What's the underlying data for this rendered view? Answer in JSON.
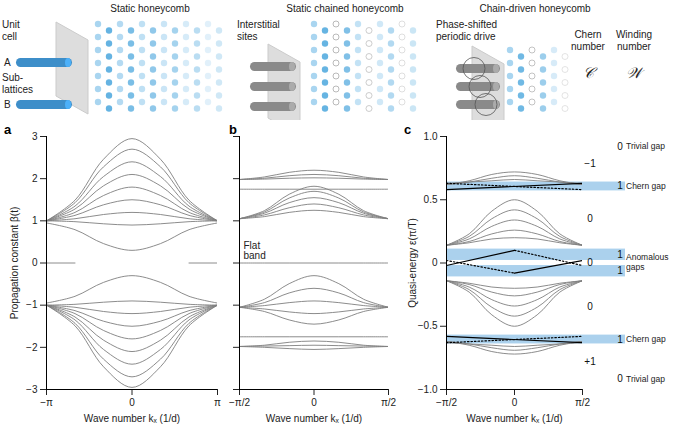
{
  "diagram": {
    "panels": [
      {
        "title": "Static honeycomb",
        "labels": {
          "unit_cell": "Unit cell",
          "sublattice_a": "A",
          "sublattices": "Sub-lattices",
          "sublattice_b": "B"
        }
      },
      {
        "title": "Static chained honeycomb",
        "labels": {
          "interstitial": "Interstitial sites"
        }
      },
      {
        "title": "Chain-driven honeycomb",
        "labels": {
          "drive": "Phase-shifted periodic drive"
        }
      }
    ],
    "columns": [
      {
        "title": "Chern number",
        "symbol": "𝒞"
      },
      {
        "title": "Winding number",
        "symbol": "𝒲"
      }
    ]
  },
  "chart_data": [
    {
      "type": "line",
      "panel": "a",
      "x_label": "Wave number kₓ (1/d)",
      "y_label": "Propagation constant β(t)",
      "xlim": [
        -3.1416,
        3.1416
      ],
      "xticks": [
        {
          "value": -3.1416,
          "label": "−π"
        },
        0,
        {
          "value": 3.1416,
          "label": "π"
        }
      ],
      "ylim": [
        -3,
        3
      ],
      "yticks": [
        {
          "value": -3,
          "label": "−3"
        },
        {
          "value": -2,
          "label": "−2"
        },
        {
          "value": -1,
          "label": "−1"
        },
        0,
        1,
        2,
        3
      ],
      "grid": false,
      "color": "#7f7f7f",
      "x": [
        -3.1416,
        -2.0944,
        -1.0472,
        0,
        1.0472,
        2.0944,
        3.1416
      ],
      "series": [
        {
          "values": [
            1,
            1.49,
            2.46,
            2.95,
            2.46,
            1.49,
            1
          ]
        },
        {
          "values": [
            1,
            1.43,
            2.28,
            2.7,
            2.28,
            1.43,
            1
          ]
        },
        {
          "values": [
            1,
            1.35,
            2.05,
            2.4,
            2.05,
            1.35,
            1
          ]
        },
        {
          "values": [
            1,
            1.28,
            1.83,
            2.1,
            1.83,
            1.28,
            1
          ]
        },
        {
          "values": [
            1,
            1.2,
            1.6,
            1.8,
            1.6,
            1.2,
            1
          ]
        },
        {
          "values": [
            1,
            1.13,
            1.38,
            1.5,
            1.38,
            1.13,
            1
          ]
        },
        {
          "values": [
            1,
            1.05,
            1.15,
            1.2,
            1.15,
            1.05,
            1
          ]
        },
        {
          "values": [
            1,
            0.98,
            0.93,
            0.9,
            0.93,
            0.98,
            1
          ]
        },
        {
          "values": [
            0.95,
            0.79,
            0.46,
            0.3,
            0.46,
            0.79,
            0.95
          ]
        },
        {
          "values": [
            0,
            0,
            null,
            null,
            null,
            0,
            0
          ]
        },
        {
          "values": [
            -0.95,
            -0.79,
            -0.46,
            -0.3,
            -0.46,
            -0.79,
            -0.95
          ]
        },
        {
          "values": [
            -1,
            -0.98,
            -0.93,
            -0.9,
            -0.93,
            -0.98,
            -1
          ]
        },
        {
          "values": [
            -1,
            -1.05,
            -1.15,
            -1.2,
            -1.15,
            -1.05,
            -1
          ]
        },
        {
          "values": [
            -1,
            -1.13,
            -1.38,
            -1.5,
            -1.38,
            -1.13,
            -1
          ]
        },
        {
          "values": [
            -1,
            -1.2,
            -1.6,
            -1.8,
            -1.6,
            -1.2,
            -1
          ]
        },
        {
          "values": [
            -1,
            -1.28,
            -1.83,
            -2.1,
            -1.83,
            -1.28,
            -1
          ]
        },
        {
          "values": [
            -1,
            -1.35,
            -2.05,
            -2.4,
            -2.05,
            -1.35,
            -1
          ]
        },
        {
          "values": [
            -1,
            -1.43,
            -2.28,
            -2.7,
            -2.28,
            -1.43,
            -1
          ]
        },
        {
          "values": [
            -1,
            -1.49,
            -2.46,
            -2.95,
            -2.46,
            -1.49,
            -1
          ]
        }
      ]
    },
    {
      "type": "line",
      "panel": "b",
      "x_label": "Wave number kₓ (1/d)",
      "xlim": [
        -1.5708,
        1.5708
      ],
      "xticks": [
        {
          "value": -1.5708,
          "label": "−π/2"
        },
        0,
        {
          "value": 1.5708,
          "label": "π/2"
        }
      ],
      "ylim": [
        -3,
        3
      ],
      "yticks": [
        -3,
        -2,
        -1,
        0,
        1,
        2,
        3
      ],
      "tick_labels": "x",
      "grid": false,
      "color": "#7f7f7f",
      "annotations": [
        {
          "text": "Flat band",
          "y": 0
        }
      ],
      "x": [
        -1.5708,
        -1.0472,
        -0.5236,
        0,
        0.5236,
        1.0472,
        1.5708
      ],
      "series": [
        {
          "values": [
            1.98,
            2.04,
            2.15,
            2.2,
            2.15,
            2.04,
            1.98
          ]
        },
        {
          "values": [
            1.98,
            2.01,
            2.07,
            2.1,
            2.07,
            2.01,
            1.98
          ]
        },
        {
          "values": [
            1.98,
            1.99,
            2.01,
            2.02,
            2.01,
            1.99,
            1.98
          ]
        },
        {
          "values": [
            1.75,
            1.75,
            1.75,
            1.75,
            1.75,
            1.75,
            1.75
          ]
        },
        {
          "values": [
            1.05,
            1.24,
            1.63,
            1.82,
            1.63,
            1.24,
            1.05
          ]
        },
        {
          "values": [
            1.05,
            1.21,
            1.54,
            1.7,
            1.54,
            1.21,
            1.05
          ]
        },
        {
          "values": [
            1.05,
            1.18,
            1.43,
            1.55,
            1.43,
            1.18,
            1.05
          ]
        },
        {
          "values": [
            1.05,
            1.14,
            1.31,
            1.4,
            1.31,
            1.14,
            1.05
          ]
        },
        {
          "values": [
            1.05,
            1.1,
            1.2,
            1.25,
            1.2,
            1.1,
            1.05
          ]
        },
        {
          "values": [
            0,
            0,
            0,
            0,
            0,
            0,
            0
          ]
        },
        {
          "values": [
            -1.05,
            -0.86,
            -0.49,
            -0.3,
            -0.49,
            -0.86,
            -1.05
          ]
        },
        {
          "values": [
            -1.05,
            -0.94,
            -0.71,
            -0.6,
            -0.71,
            -0.94,
            -1.05
          ]
        },
        {
          "values": [
            -1.05,
            -1.01,
            -0.94,
            -0.9,
            -0.94,
            -1.01,
            -1.05
          ]
        },
        {
          "values": [
            -1.05,
            -1.09,
            -1.16,
            -1.2,
            -1.16,
            -1.09,
            -1.05
          ]
        },
        {
          "values": [
            -1.05,
            -1.15,
            -1.35,
            -1.45,
            -1.35,
            -1.15,
            -1.05
          ]
        },
        {
          "values": [
            -1.75,
            -1.75,
            -1.75,
            -1.75,
            -1.75,
            -1.75,
            -1.75
          ]
        },
        {
          "values": [
            -1.98,
            -1.95,
            -1.88,
            -1.85,
            -1.88,
            -1.95,
            -1.98
          ]
        },
        {
          "values": [
            -1.98,
            -1.97,
            -1.96,
            -1.95,
            -1.96,
            -1.97,
            -1.98
          ]
        },
        {
          "values": [
            -1.98,
            -2.0,
            -2.03,
            -2.05,
            -2.03,
            -2.0,
            -1.98
          ]
        }
      ]
    },
    {
      "type": "line",
      "panel": "c",
      "x_label": "Wave number kₓ (1/d)",
      "y_label": "Quasi-energy ε(π/T)",
      "xlim": [
        -1.5708,
        1.5708
      ],
      "xticks": [
        {
          "value": -1.5708,
          "label": "−π/2"
        },
        0,
        {
          "value": 1.5708,
          "label": "π/2"
        }
      ],
      "ylim": [
        -1,
        1
      ],
      "yticks": [
        {
          "value": -1,
          "label": "−1.0"
        },
        {
          "value": -0.5,
          "label": "−0.5"
        },
        0,
        0.5,
        {
          "value": 1,
          "label": "1.0"
        }
      ],
      "grid": false,
      "color": "#7f7f7f",
      "x": [
        -1.5708,
        -1.0472,
        -0.5236,
        0,
        0.5236,
        1.0472,
        1.5708
      ],
      "series": [
        {
          "values": [
            0.62,
            0.65,
            0.7,
            0.72,
            0.7,
            0.65,
            0.62
          ]
        },
        {
          "values": [
            0.62,
            0.64,
            0.67,
            0.69,
            0.67,
            0.64,
            0.62
          ]
        },
        {
          "values": [
            0.63,
            0.64,
            0.65,
            0.66,
            0.65,
            0.64,
            0.63
          ]
        },
        {
          "values": [
            0.14,
            0.23,
            0.41,
            0.5,
            0.41,
            0.23,
            0.14
          ]
        },
        {
          "values": [
            0.14,
            0.21,
            0.35,
            0.42,
            0.35,
            0.21,
            0.14
          ]
        },
        {
          "values": [
            0.14,
            0.19,
            0.29,
            0.34,
            0.29,
            0.19,
            0.14
          ]
        },
        {
          "values": [
            0.14,
            0.17,
            0.23,
            0.26,
            0.23,
            0.17,
            0.14
          ]
        },
        {
          "values": [
            0.14,
            0.16,
            0.19,
            0.2,
            0.19,
            0.16,
            0.14
          ]
        },
        {
          "values": [
            -0.14,
            -0.16,
            -0.19,
            -0.2,
            -0.19,
            -0.16,
            -0.14
          ]
        },
        {
          "values": [
            -0.14,
            -0.17,
            -0.23,
            -0.26,
            -0.23,
            -0.17,
            -0.14
          ]
        },
        {
          "values": [
            -0.14,
            -0.19,
            -0.29,
            -0.34,
            -0.29,
            -0.19,
            -0.14
          ]
        },
        {
          "values": [
            -0.14,
            -0.21,
            -0.35,
            -0.42,
            -0.35,
            -0.21,
            -0.14
          ]
        },
        {
          "values": [
            -0.14,
            -0.23,
            -0.41,
            -0.5,
            -0.41,
            -0.23,
            -0.14
          ]
        },
        {
          "values": [
            -0.63,
            -0.64,
            -0.65,
            -0.66,
            -0.65,
            -0.64,
            -0.63
          ]
        },
        {
          "values": [
            -0.62,
            -0.64,
            -0.67,
            -0.69,
            -0.67,
            -0.64,
            -0.62
          ]
        },
        {
          "values": [
            -0.62,
            -0.65,
            -0.7,
            -0.72,
            -0.7,
            -0.65,
            -0.62
          ]
        },
        {
          "x": [
            -1.5708,
            0
          ],
          "values": [
            -0.02,
            0.1
          ],
          "color": "#000000",
          "line_style": "solid"
        },
        {
          "x": [
            0,
            1.5708
          ],
          "values": [
            0.1,
            -0.02
          ],
          "color": "#000000",
          "line_style": "dotted"
        },
        {
          "x": [
            -1.5708,
            0
          ],
          "values": [
            0.02,
            -0.08
          ],
          "color": "#000000",
          "line_style": "dotted"
        },
        {
          "x": [
            0,
            1.5708
          ],
          "values": [
            -0.08,
            0.02
          ],
          "color": "#000000",
          "line_style": "solid"
        },
        {
          "x": [
            -1.5708,
            1.5708
          ],
          "values": [
            0.58,
            0.63
          ],
          "color": "#000000",
          "line_style": "solid"
        },
        {
          "x": [
            -1.5708,
            1.5708
          ],
          "values": [
            0.63,
            0.58
          ],
          "color": "#000000",
          "line_style": "dotted"
        },
        {
          "x": [
            -1.5708,
            1.5708
          ],
          "values": [
            -0.58,
            -0.63
          ],
          "color": "#000000",
          "line_style": "solid"
        },
        {
          "x": [
            -1.5708,
            1.5708
          ],
          "values": [
            -0.63,
            -0.58
          ],
          "color": "#000000",
          "line_style": "dotted"
        }
      ],
      "gaps": [
        {
          "y0": 0.57,
          "y1": 0.64,
          "winding": 1,
          "label": "Chern gap"
        },
        {
          "y0": 0.02,
          "y1": 0.11,
          "winding": 1
        },
        {
          "y0": -0.11,
          "y1": -0.02,
          "winding": 1
        },
        {
          "y0": -0.64,
          "y1": -0.57,
          "winding": 1,
          "label": "Chern gap"
        }
      ],
      "gap_group_labels": [
        {
          "y": 0,
          "label": "Anomalous gaps"
        }
      ],
      "trivial_gaps": [
        {
          "y": 0.92,
          "winding": 0,
          "label": "Trivial gap"
        },
        {
          "y": -0.92,
          "winding": 0,
          "label": "Trivial gap"
        }
      ],
      "chern_numbers": [
        {
          "y": 0.78,
          "value": -1,
          "label": "−1"
        },
        {
          "y": 0.35,
          "value": 0
        },
        {
          "y": 0,
          "value": 0
        },
        {
          "y": -0.35,
          "value": 0
        },
        {
          "y": -0.78,
          "value": 1,
          "label": "+1"
        }
      ]
    }
  ]
}
